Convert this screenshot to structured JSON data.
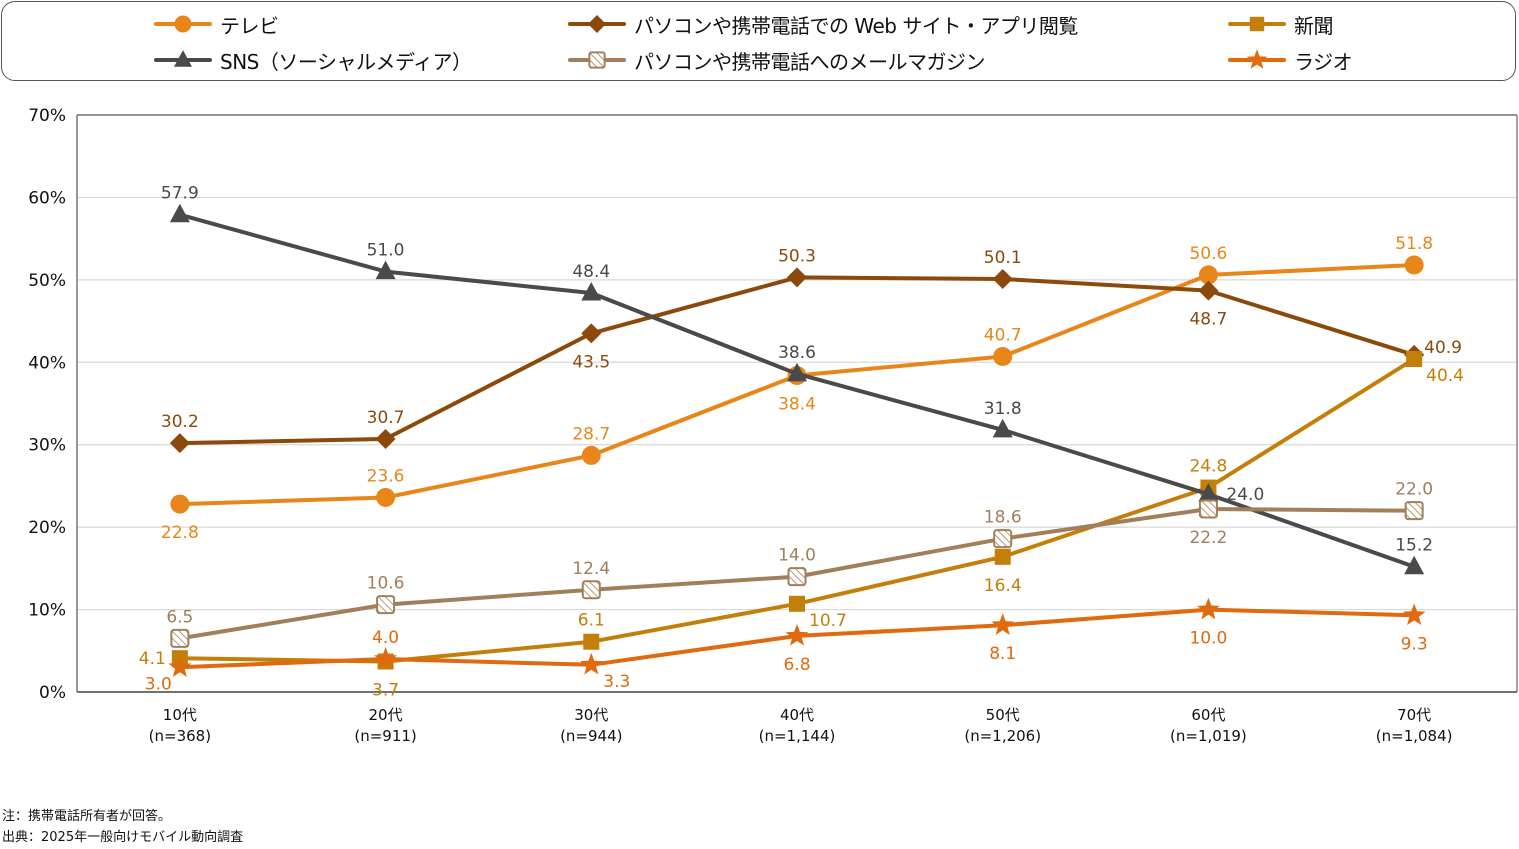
{
  "chart_data": {
    "type": "line",
    "title": "",
    "xlabel": "",
    "ylabel": "",
    "ylim": [
      0,
      70
    ],
    "y_ticks": [
      0,
      10,
      20,
      30,
      40,
      50,
      60,
      70
    ],
    "y_tick_format": "{v}%",
    "grid": true,
    "legend_position": "top",
    "categories": [
      "10代",
      "20代",
      "30代",
      "40代",
      "50代",
      "60代",
      "70代"
    ],
    "category_sublabels": [
      "(n=368)",
      "(n=911)",
      "(n=944)",
      "(n=1,144)",
      "(n=1,206)",
      "(n=1,019)",
      "(n=1,084)"
    ],
    "series": [
      {
        "name": "テレビ",
        "color": "#E8861A",
        "marker": "circle",
        "values": [
          22.8,
          23.6,
          28.7,
          38.4,
          40.7,
          50.6,
          51.8
        ],
        "label_pos": [
          "below",
          "above",
          "above",
          "below",
          "above",
          "above",
          "above"
        ]
      },
      {
        "name": "パソコンや携帯電話でのWebサイト・アプリ閲覧",
        "color": "#8B4A0C",
        "marker": "diamond",
        "values": [
          30.2,
          30.7,
          43.5,
          50.3,
          50.1,
          48.7,
          40.9
        ],
        "label_pos": [
          "above",
          "above",
          "below",
          "above",
          "above",
          "below",
          "right-up"
        ]
      },
      {
        "name": "新聞",
        "color": "#C47F0A",
        "marker": "square",
        "values": [
          4.1,
          3.7,
          6.1,
          10.7,
          16.4,
          24.8,
          40.4
        ],
        "label_pos": [
          "left",
          "below",
          "above",
          "right-down",
          "below",
          "above",
          "right-down"
        ]
      },
      {
        "name": "SNS（ソーシャルメディア）",
        "color": "#4A4A4A",
        "marker": "triangle",
        "values": [
          57.9,
          51.0,
          48.4,
          38.6,
          31.8,
          24.0,
          15.2
        ],
        "label_pos": [
          "above",
          "above",
          "above",
          "above",
          "above",
          "right",
          "above"
        ]
      },
      {
        "name": "パソコンや携帯電話へのメールマガジン",
        "color": "#A07F5A",
        "marker": "hatched-square",
        "values": [
          6.5,
          10.6,
          12.4,
          14.0,
          18.6,
          22.2,
          22.0
        ],
        "label_pos": [
          "above",
          "above",
          "above",
          "above",
          "above",
          "below",
          "above"
        ]
      },
      {
        "name": "ラジオ",
        "color": "#E06A0E",
        "marker": "star",
        "values": [
          3.0,
          4.0,
          3.3,
          6.8,
          8.1,
          10.0,
          9.3
        ],
        "label_pos": [
          "left-down",
          "above",
          "right-down",
          "below",
          "below",
          "below",
          "below"
        ]
      }
    ]
  },
  "legend": {
    "items": [
      {
        "label": "テレビ",
        "series": 0
      },
      {
        "label": "パソコンや携帯電話での Web サイト・アプリ閲覧",
        "series": 1
      },
      {
        "label": "新聞",
        "series": 2
      },
      {
        "label": "SNS（ソーシャルメディア）",
        "series": 3
      },
      {
        "label": "パソコンや携帯電話へのメールマガジン",
        "series": 4
      },
      {
        "label": "ラジオ",
        "series": 5
      }
    ]
  },
  "notes": {
    "note": "注：携帯電話所有者が回答。",
    "source": "出典：2025年一般向けモバイル動向調査"
  }
}
